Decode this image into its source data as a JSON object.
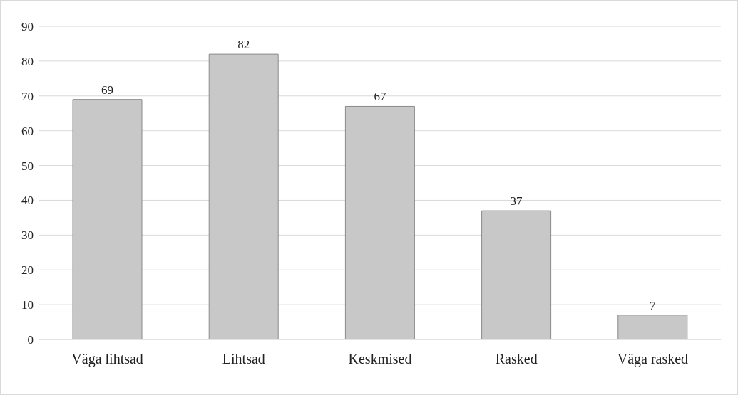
{
  "chart_data": {
    "type": "bar",
    "categories": [
      "Väga lihtsad",
      "Lihtsad",
      "Keskmised",
      "Rasked",
      "Väga rasked"
    ],
    "values": [
      69,
      82,
      67,
      37,
      7
    ],
    "color": "#c8c8c8",
    "ylim": [
      0,
      90
    ],
    "yticks": [
      0,
      10,
      20,
      30,
      40,
      50,
      60,
      70,
      80,
      90
    ],
    "grid": "y",
    "data_labels": true
  }
}
